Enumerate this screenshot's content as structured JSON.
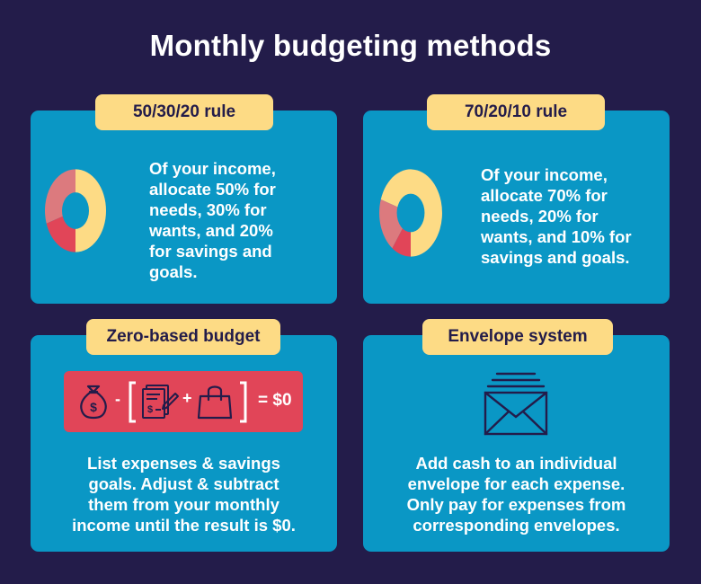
{
  "title": "Monthly budgeting methods",
  "colors": {
    "background": "#231c4a",
    "card": "#0a97c5",
    "pill": "#fddb85",
    "needs": "#fddb85",
    "wants": "#dc7a7e",
    "savings": "#e14558",
    "donut_hole": "#0a97c5"
  },
  "cards": [
    {
      "title": "50/30/20 rule",
      "text": "Of your income,\nallocate 50% for\nneeds, 30% for\nwants, and 20%\nfor savings and\ngoals."
    },
    {
      "title": "70/20/10 rule",
      "text": "Of your income,\nallocate 70% for\nneeds, 20% for\nwants, and 10% for\nsavings and goals."
    },
    {
      "title": "Zero-based budget",
      "text": "List expenses & savings\ngoals. Adjust & subtract\nthem from your monthly\nincome until the result is $0.",
      "formula": {
        "minus": "-",
        "plus": "+",
        "equals_result": "= $0",
        "icons": [
          "money-bag-icon",
          "bill-invoice-icon",
          "shopping-bag-icon"
        ]
      }
    },
    {
      "title": "Envelope system",
      "text": "Add cash to an individual\nenvelope for each expense.\nOnly pay for expenses from\ncorresponding envelopes.",
      "icon": "envelope-icon"
    }
  ],
  "chart_data": [
    {
      "type": "pie",
      "categories": [
        "needs",
        "wants",
        "savings and goals"
      ],
      "values": [
        50,
        30,
        20
      ]
    },
    {
      "type": "pie",
      "categories": [
        "needs",
        "wants",
        "savings and goals"
      ],
      "values": [
        70,
        20,
        10
      ]
    }
  ]
}
